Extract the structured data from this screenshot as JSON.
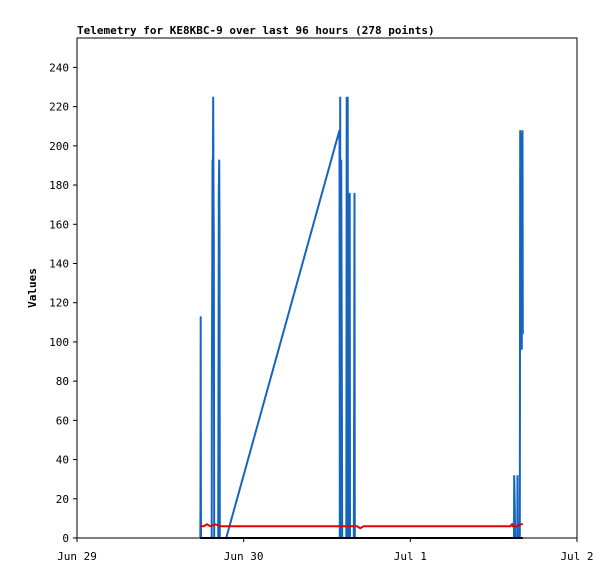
{
  "chart_data": {
    "type": "line",
    "title": "Telemetry for KE8KBC-9 over last 96 hours (278 points)",
    "xlabel": "",
    "ylabel": "Values",
    "xlim": [
      "Jun 29",
      "Jul 2"
    ],
    "ylim": [
      0,
      255
    ],
    "grid": false,
    "legend": "none",
    "x_ticks": [
      "Jun 29",
      "Jun 30",
      "Jul 1",
      "Jul 2"
    ],
    "y_ticks": [
      0,
      20,
      40,
      60,
      80,
      100,
      120,
      140,
      160,
      180,
      200,
      220,
      240
    ],
    "series": [
      {
        "color": "#1565c0",
        "points": [
          [
            0.74,
            0
          ],
          [
            0.741,
            18
          ],
          [
            0.742,
            113
          ],
          [
            0.743,
            57
          ],
          [
            0.744,
            0
          ],
          [
            0.808,
            0
          ],
          [
            0.809,
            65
          ],
          [
            0.811,
            128
          ],
          [
            0.813,
            193
          ],
          [
            0.815,
            176
          ],
          [
            0.817,
            225
          ],
          [
            0.819,
            176
          ],
          [
            0.821,
            152
          ],
          [
            0.823,
            0
          ],
          [
            0.847,
            0
          ],
          [
            0.849,
            80
          ],
          [
            0.851,
            176
          ],
          [
            0.853,
            193
          ],
          [
            0.855,
            160
          ],
          [
            0.857,
            0
          ],
          [
            0.87,
            0
          ],
          [
            0.895,
            0
          ],
          [
            1.575,
            208
          ],
          [
            1.577,
            0
          ],
          [
            1.579,
            225
          ],
          [
            1.581,
            0
          ],
          [
            1.585,
            193
          ],
          [
            1.588,
            113
          ],
          [
            1.591,
            0
          ],
          [
            1.616,
            0
          ],
          [
            1.618,
            225
          ],
          [
            1.62,
            176
          ],
          [
            1.622,
            208
          ],
          [
            1.624,
            225
          ],
          [
            1.626,
            0
          ],
          [
            1.635,
            0
          ],
          [
            1.636,
            176
          ],
          [
            1.638,
            0
          ],
          [
            1.661,
            0
          ],
          [
            1.663,
            80
          ],
          [
            1.665,
            176
          ],
          [
            1.667,
            0
          ],
          [
            2.622,
            0
          ],
          [
            2.623,
            32
          ],
          [
            2.625,
            24
          ],
          [
            2.627,
            16
          ],
          [
            2.629,
            0
          ],
          [
            2.642,
            0
          ],
          [
            2.643,
            32
          ],
          [
            2.645,
            0
          ],
          [
            2.657,
            0
          ],
          [
            2.659,
            208
          ],
          [
            2.663,
            204
          ],
          [
            2.667,
            196
          ],
          [
            2.669,
            96
          ],
          [
            2.671,
            192
          ],
          [
            2.673,
            208
          ],
          [
            2.675,
            104
          ]
        ]
      },
      {
        "color": "#e00000",
        "points": [
          [
            0.74,
            6
          ],
          [
            0.76,
            6
          ],
          [
            0.78,
            7
          ],
          [
            0.8,
            6
          ],
          [
            0.83,
            7
          ],
          [
            0.86,
            6
          ],
          [
            0.9,
            6
          ],
          [
            1.2,
            6
          ],
          [
            1.5,
            6
          ],
          [
            1.55,
            6
          ],
          [
            1.6,
            6
          ],
          [
            1.65,
            6
          ],
          [
            1.68,
            6
          ],
          [
            1.7,
            5
          ],
          [
            1.72,
            6
          ],
          [
            1.9,
            6
          ],
          [
            2.2,
            6
          ],
          [
            2.5,
            6
          ],
          [
            2.6,
            6
          ],
          [
            2.61,
            7
          ],
          [
            2.615,
            6
          ],
          [
            2.64,
            6
          ],
          [
            2.66,
            7
          ],
          [
            2.675,
            7
          ]
        ]
      },
      {
        "color": "#000000",
        "points": [
          [
            0.74,
            0
          ],
          [
            2.675,
            0
          ]
        ]
      }
    ]
  }
}
